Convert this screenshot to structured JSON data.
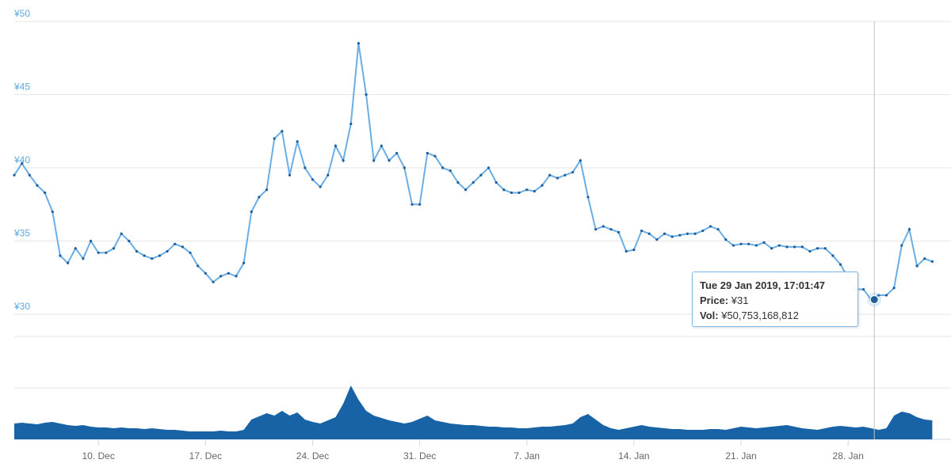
{
  "chart_data": {
    "type": "line",
    "x": [
      "2018-12-04T12:00",
      "2018-12-05T00:00",
      "2018-12-05T12:00",
      "2018-12-06T00:00",
      "2018-12-06T12:00",
      "2018-12-07T00:00",
      "2018-12-07T12:00",
      "2018-12-08T00:00",
      "2018-12-08T12:00",
      "2018-12-09T00:00",
      "2018-12-09T12:00",
      "2018-12-10T00:00",
      "2018-12-10T12:00",
      "2018-12-11T00:00",
      "2018-12-11T12:00",
      "2018-12-12T00:00",
      "2018-12-12T12:00",
      "2018-12-13T00:00",
      "2018-12-13T12:00",
      "2018-12-14T00:00",
      "2018-12-14T12:00",
      "2018-12-15T00:00",
      "2018-12-15T12:00",
      "2018-12-16T00:00",
      "2018-12-16T12:00",
      "2018-12-17T00:00",
      "2018-12-17T12:00",
      "2018-12-18T00:00",
      "2018-12-18T12:00",
      "2018-12-19T00:00",
      "2018-12-19T12:00",
      "2018-12-20T00:00",
      "2018-12-20T12:00",
      "2018-12-21T00:00",
      "2018-12-21T12:00",
      "2018-12-22T00:00",
      "2018-12-22T12:00",
      "2018-12-23T00:00",
      "2018-12-23T12:00",
      "2018-12-24T00:00",
      "2018-12-24T12:00",
      "2018-12-25T00:00",
      "2018-12-25T12:00",
      "2018-12-26T00:00",
      "2018-12-26T12:00",
      "2018-12-27T00:00",
      "2018-12-27T12:00",
      "2018-12-28T00:00",
      "2018-12-28T12:00",
      "2018-12-29T00:00",
      "2018-12-29T12:00",
      "2018-12-30T00:00",
      "2018-12-30T12:00",
      "2018-12-31T00:00",
      "2018-12-31T12:00",
      "2019-01-01T00:00",
      "2019-01-01T12:00",
      "2019-01-02T00:00",
      "2019-01-02T12:00",
      "2019-01-03T00:00",
      "2019-01-03T12:00",
      "2019-01-04T00:00",
      "2019-01-04T12:00",
      "2019-01-05T00:00",
      "2019-01-05T12:00",
      "2019-01-06T00:00",
      "2019-01-06T12:00",
      "2019-01-07T00:00",
      "2019-01-07T12:00",
      "2019-01-08T00:00",
      "2019-01-08T12:00",
      "2019-01-09T00:00",
      "2019-01-09T12:00",
      "2019-01-10T00:00",
      "2019-01-10T12:00",
      "2019-01-11T00:00",
      "2019-01-11T12:00",
      "2019-01-12T00:00",
      "2019-01-12T12:00",
      "2019-01-13T00:00",
      "2019-01-13T12:00",
      "2019-01-14T00:00",
      "2019-01-14T12:00",
      "2019-01-15T00:00",
      "2019-01-15T12:00",
      "2019-01-16T00:00",
      "2019-01-16T12:00",
      "2019-01-17T00:00",
      "2019-01-17T12:00",
      "2019-01-18T00:00",
      "2019-01-18T12:00",
      "2019-01-19T00:00",
      "2019-01-19T12:00",
      "2019-01-20T00:00",
      "2019-01-20T12:00",
      "2019-01-21T00:00",
      "2019-01-21T12:00",
      "2019-01-22T00:00",
      "2019-01-22T12:00",
      "2019-01-23T00:00",
      "2019-01-23T12:00",
      "2019-01-24T00:00",
      "2019-01-24T12:00",
      "2019-01-25T00:00",
      "2019-01-25T12:00",
      "2019-01-26T00:00",
      "2019-01-26T12:00",
      "2019-01-27T00:00",
      "2019-01-27T12:00",
      "2019-01-28T00:00",
      "2019-01-28T12:00",
      "2019-01-29T00:00",
      "2019-01-29T12:00",
      "2019-01-30T00:00",
      "2019-01-30T12:00",
      "2019-01-31T00:00",
      "2019-01-31T12:00",
      "2019-02-01T00:00",
      "2019-02-01T12:00",
      "2019-02-02T00:00",
      "2019-02-02T12:00"
    ],
    "xlim": [
      "2018-12-04T12:00",
      "2019-02-02T14:00"
    ],
    "xticks": [
      {
        "value": "2018-12-10T00:00",
        "label": "10. Dec"
      },
      {
        "value": "2018-12-17T00:00",
        "label": "17. Dec"
      },
      {
        "value": "2018-12-24T00:00",
        "label": "24. Dec"
      },
      {
        "value": "2018-12-31T00:00",
        "label": "31. Dec"
      },
      {
        "value": "2019-01-07T00:00",
        "label": "7. Jan"
      },
      {
        "value": "2019-01-14T00:00",
        "label": "14. Jan"
      },
      {
        "value": "2019-01-21T00:00",
        "label": "21. Jan"
      },
      {
        "value": "2019-01-28T00:00",
        "label": "28. Jan"
      }
    ],
    "price": {
      "color": "#6aaee6",
      "marker_color": "#1f5d99",
      "ylim": [
        30,
        50
      ],
      "yticks": [
        {
          "value": 30,
          "label": "¥30"
        },
        {
          "value": 35,
          "label": "¥35"
        },
        {
          "value": 40,
          "label": "¥40"
        },
        {
          "value": 45,
          "label": "¥45"
        },
        {
          "value": 50,
          "label": "¥50"
        }
      ],
      "values": [
        39.5,
        40.3,
        39.5,
        38.8,
        38.3,
        37,
        34,
        33.5,
        34.5,
        33.8,
        35,
        34.2,
        34.2,
        34.5,
        35.5,
        35,
        34.3,
        34,
        33.8,
        34,
        34.3,
        34.8,
        34.6,
        34.2,
        33.3,
        32.8,
        32.2,
        32.6,
        32.8,
        32.6,
        33.5,
        37,
        38,
        38.5,
        42,
        42.5,
        39.5,
        41.8,
        40,
        39.2,
        38.7,
        39.5,
        41.5,
        40.5,
        43,
        48.5,
        45,
        40.5,
        41.5,
        40.5,
        41,
        40,
        37.5,
        37.5,
        41,
        40.8,
        40,
        39.8,
        39,
        38.5,
        39,
        39.5,
        40,
        39,
        38.5,
        38.3,
        38.3,
        38.5,
        38.4,
        38.8,
        39.5,
        39.3,
        39.5,
        39.7,
        40.5,
        38,
        35.8,
        36,
        35.8,
        35.6,
        34.3,
        34.4,
        35.7,
        35.5,
        35.1,
        35.5,
        35.3,
        35.4,
        35.5,
        35.5,
        35.7,
        36,
        35.8,
        35.1,
        34.7,
        34.8,
        34.8,
        34.7,
        34.9,
        34.5,
        34.7,
        34.6,
        34.6,
        34.6,
        34.3,
        34.5,
        34.5,
        34,
        33.4,
        32.5,
        31.7,
        31.7,
        31,
        31.3,
        31.3,
        31.8,
        34.7,
        35.8,
        33.3,
        33.8,
        33.6
      ]
    },
    "volume": {
      "color": "#1763a6",
      "ylim": [
        0,
        442000000000
      ],
      "yticks": [
        0,
        221000000000,
        442000000000
      ],
      "values": [
        68000000000,
        71400000000,
        68000000000,
        64600000000,
        71400000000,
        74800000000,
        68000000000,
        61200000000,
        57800000000,
        61200000000,
        54400000000,
        51000000000,
        51000000000,
        47600000000,
        51000000000,
        47600000000,
        47600000000,
        44200000000,
        47600000000,
        44200000000,
        40800000000,
        40800000000,
        37400000000,
        34000000000,
        34000000000,
        34000000000,
        34000000000,
        37400000000,
        34000000000,
        34000000000,
        40800000000,
        85000000000,
        98600000000,
        112200000000,
        102000000000,
        122400000000,
        102000000000,
        115600000000,
        85000000000,
        74800000000,
        68000000000,
        81600000000,
        95200000000,
        153000000000,
        231200000000,
        170000000000,
        122400000000,
        102000000000,
        91800000000,
        81600000000,
        74800000000,
        68000000000,
        74800000000,
        88400000000,
        102000000000,
        81600000000,
        74800000000,
        68000000000,
        64600000000,
        61200000000,
        61200000000,
        57800000000,
        54400000000,
        54400000000,
        51000000000,
        51000000000,
        47600000000,
        47600000000,
        51000000000,
        54400000000,
        54400000000,
        57800000000,
        61200000000,
        68000000000,
        95200000000,
        108800000000,
        85000000000,
        61200000000,
        47600000000,
        40800000000,
        47600000000,
        54400000000,
        61200000000,
        54400000000,
        51000000000,
        47600000000,
        44200000000,
        44200000000,
        40800000000,
        40800000000,
        40800000000,
        44200000000,
        44200000000,
        40800000000,
        47600000000,
        54400000000,
        51000000000,
        47600000000,
        51000000000,
        54400000000,
        57800000000,
        61200000000,
        54400000000,
        47600000000,
        44200000000,
        40800000000,
        47600000000,
        54400000000,
        57800000000,
        54400000000,
        51000000000,
        54400000000,
        47600000000,
        40800000000,
        47600000000,
        102000000000,
        119000000000,
        112200000000,
        95200000000,
        85000000000,
        81600000000
      ]
    },
    "tooltip": {
      "x": "2019-01-29T17:01:47",
      "date_label": "Tue 29 Jan 2019, 17:01:47",
      "price_key": "Price:",
      "price": 31,
      "price_label": "¥31",
      "volume_key": "Vol:",
      "volume": 50753168812,
      "volume_label": "¥50,753,168,812"
    }
  }
}
